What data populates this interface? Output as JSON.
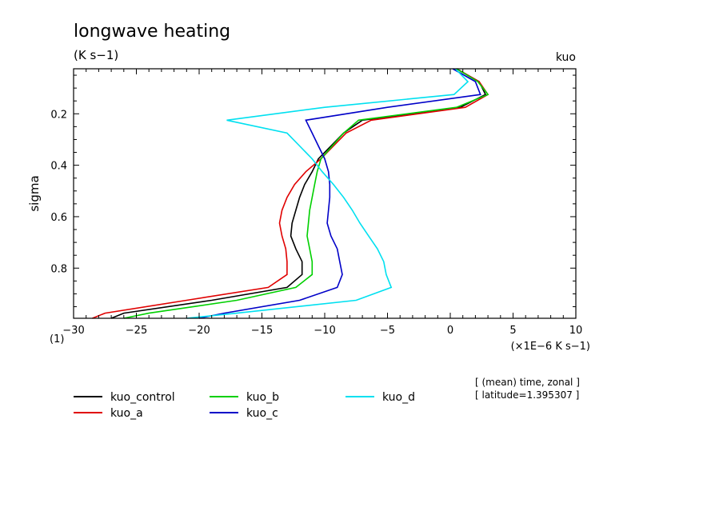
{
  "chart_data": {
    "type": "line",
    "title": "longwave heating",
    "units": "(K s−1)",
    "experiment": "kuo",
    "xlabel": "(×1E−6 K s−1)",
    "ylabel": "sigma",
    "y_unit_label": "(1)",
    "xlim": [
      -30,
      10
    ],
    "ylim": [
      0.995,
      0.025
    ],
    "y_inverted": true,
    "x_ticks": [
      -30,
      -25,
      -20,
      -15,
      -10,
      -5,
      0,
      5,
      10
    ],
    "y_ticks": [
      0.2,
      0.4,
      0.6,
      0.8
    ],
    "y_tick_labels": [
      "0.2",
      "0.4",
      "0.6",
      "0.8"
    ],
    "x_tick_labels": [
      "−30",
      "−25",
      "−20",
      "−15",
      "−10",
      "−5",
      "0",
      "5",
      "10"
    ],
    "grid": false,
    "legend_position": "bottom",
    "annotation_lines": [
      "[ (mean) time, zonal ]",
      "[ latitude=1.395307 ]"
    ],
    "series": [
      {
        "name": "kuo_control",
        "color": "#000000",
        "sigma": [
          0.025,
          0.075,
          0.125,
          0.175,
          0.225,
          0.275,
          0.325,
          0.375,
          0.425,
          0.475,
          0.525,
          0.575,
          0.625,
          0.675,
          0.725,
          0.775,
          0.825,
          0.875,
          0.925,
          0.975,
          0.995
        ],
        "values": [
          0.5,
          2.3,
          2.8,
          0.8,
          -7.0,
          -8.5,
          -9.5,
          -10.5,
          -11.0,
          -11.6,
          -12.0,
          -12.3,
          -12.6,
          -12.7,
          -12.3,
          -11.8,
          -11.8,
          -13.0,
          -19.0,
          -26.0,
          -27.0
        ]
      },
      {
        "name": "kuo_a",
        "color": "#e00000",
        "sigma": [
          0.025,
          0.075,
          0.125,
          0.175,
          0.225,
          0.275,
          0.325,
          0.375,
          0.425,
          0.475,
          0.525,
          0.575,
          0.625,
          0.675,
          0.725,
          0.775,
          0.825,
          0.875,
          0.925,
          0.975,
          0.995
        ],
        "values": [
          0.5,
          2.3,
          3.0,
          1.2,
          -6.3,
          -8.3,
          -9.3,
          -10.3,
          -11.5,
          -12.4,
          -13.0,
          -13.4,
          -13.6,
          -13.4,
          -13.1,
          -13.0,
          -13.0,
          -14.5,
          -21.0,
          -27.5,
          -28.5
        ]
      },
      {
        "name": "kuo_b",
        "color": "#00d000",
        "sigma": [
          0.025,
          0.075,
          0.125,
          0.175,
          0.225,
          0.275,
          0.325,
          0.375,
          0.425,
          0.475,
          0.525,
          0.575,
          0.625,
          0.675,
          0.725,
          0.775,
          0.825,
          0.875,
          0.925,
          0.975,
          0.995
        ],
        "values": [
          0.5,
          2.2,
          3.0,
          0.5,
          -7.3,
          -8.5,
          -9.4,
          -10.3,
          -10.6,
          -10.8,
          -11.0,
          -11.2,
          -11.3,
          -11.4,
          -11.2,
          -11.0,
          -11.0,
          -12.3,
          -17.0,
          -24.0,
          -26.0
        ]
      },
      {
        "name": "kuo_c",
        "color": "#0000c8",
        "sigma": [
          0.025,
          0.075,
          0.125,
          0.175,
          0.225,
          0.275,
          0.325,
          0.375,
          0.425,
          0.475,
          0.525,
          0.575,
          0.625,
          0.675,
          0.725,
          0.775,
          0.825,
          0.875,
          0.925,
          0.975,
          0.995
        ],
        "values": [
          0.2,
          2.0,
          2.4,
          -5.0,
          -11.5,
          -11.0,
          -10.5,
          -10.0,
          -9.7,
          -9.6,
          -9.6,
          -9.7,
          -9.8,
          -9.5,
          -9.0,
          -8.8,
          -8.6,
          -9.0,
          -12.0,
          -18.0,
          -20.0
        ]
      },
      {
        "name": "kuo_d",
        "color": "#00e0f0",
        "sigma": [
          0.025,
          0.075,
          0.125,
          0.175,
          0.225,
          0.275,
          0.325,
          0.375,
          0.425,
          0.475,
          0.525,
          0.575,
          0.625,
          0.675,
          0.725,
          0.775,
          0.825,
          0.875,
          0.925,
          0.975,
          0.995
        ],
        "values": [
          0.4,
          1.4,
          0.3,
          -10.0,
          -17.8,
          -13.0,
          -12.0,
          -11.0,
          -10.2,
          -9.3,
          -8.5,
          -7.8,
          -7.2,
          -6.5,
          -5.8,
          -5.3,
          -5.1,
          -4.7,
          -7.5,
          -17.0,
          -21.0
        ]
      }
    ]
  }
}
